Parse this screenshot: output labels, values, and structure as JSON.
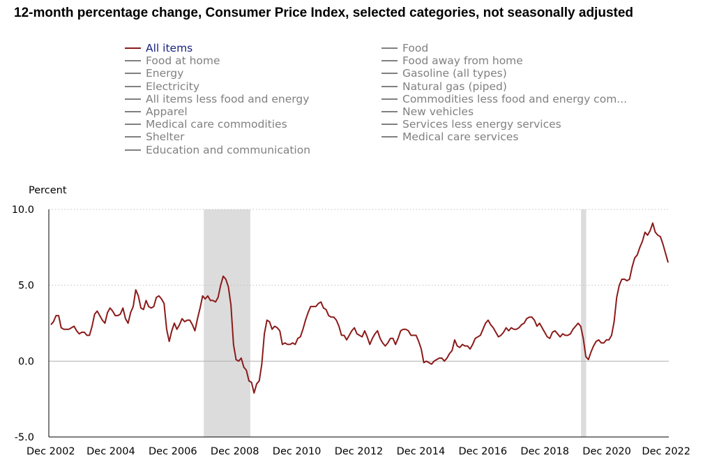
{
  "chart_data": {
    "type": "line",
    "title": "12-month percentage change, Consumer Price Index, selected categories, not seasonally adjusted",
    "ylabel": "Percent",
    "ylim": [
      -5.0,
      10.0
    ],
    "y_ticks": [
      "10.0",
      "5.0",
      "0.0",
      "-5.0"
    ],
    "x_ticks": [
      "Dec 2002",
      "Dec 2004",
      "Dec 2006",
      "Dec 2008",
      "Dec 2010",
      "Dec 2012",
      "Dec 2014",
      "Dec 2016",
      "Dec 2018",
      "Dec 2020",
      "Dec 2022"
    ],
    "x_start": "Dec 2002",
    "x_end": "Dec 2022",
    "grid": "horizontal-dotted",
    "recessions": [
      {
        "start": "Dec 2007",
        "end": "Jun 2009"
      },
      {
        "start": "Feb 2020",
        "end": "Apr 2020"
      }
    ],
    "colors": {
      "active_series": "#8b1a1a",
      "inactive_series": "#808080",
      "active_label": "#1a237e",
      "recession": "#dcdcdc"
    },
    "legend": {
      "left": [
        {
          "label": "All items",
          "active": true
        },
        {
          "label": "Food at home",
          "active": false
        },
        {
          "label": "Energy",
          "active": false
        },
        {
          "label": "Electricity",
          "active": false
        },
        {
          "label": "All items less food and energy",
          "active": false
        },
        {
          "label": "Apparel",
          "active": false
        },
        {
          "label": "Medical care commodities",
          "active": false
        },
        {
          "label": "Shelter",
          "active": false
        },
        {
          "label": "Education and communication",
          "active": false
        }
      ],
      "right": [
        {
          "label": "Food",
          "active": false
        },
        {
          "label": "Food away from home",
          "active": false
        },
        {
          "label": "Gasoline (all types)",
          "active": false
        },
        {
          "label": "Natural gas (piped)",
          "active": false
        },
        {
          "label": "Commodities less food and energy com...",
          "active": false
        },
        {
          "label": "New vehicles",
          "active": false
        },
        {
          "label": "Services less energy services",
          "active": false
        },
        {
          "label": "Medical care services",
          "active": false
        }
      ]
    },
    "series": [
      {
        "name": "All items",
        "values": [
          2.4,
          2.6,
          3.0,
          3.0,
          2.2,
          2.1,
          2.1,
          2.1,
          2.2,
          2.3,
          2.0,
          1.8,
          1.9,
          1.9,
          1.7,
          1.7,
          2.3,
          3.1,
          3.3,
          3.0,
          2.7,
          2.5,
          3.2,
          3.5,
          3.3,
          3.0,
          3.0,
          3.1,
          3.5,
          2.8,
          2.5,
          3.2,
          3.6,
          4.7,
          4.3,
          3.5,
          3.4,
          4.0,
          3.6,
          3.5,
          3.6,
          4.2,
          4.3,
          4.1,
          3.8,
          2.1,
          1.3,
          2.0,
          2.5,
          2.1,
          2.4,
          2.8,
          2.6,
          2.7,
          2.7,
          2.4,
          2.0,
          2.8,
          3.5,
          4.3,
          4.1,
          4.3,
          4.0,
          4.0,
          3.9,
          4.2,
          5.0,
          5.6,
          5.4,
          4.9,
          3.7,
          1.1,
          0.1,
          0.0,
          0.2,
          -0.4,
          -0.6,
          -1.3,
          -1.4,
          -2.1,
          -1.5,
          -1.3,
          -0.2,
          1.8,
          2.7,
          2.6,
          2.1,
          2.3,
          2.2,
          2.0,
          1.1,
          1.2,
          1.1,
          1.1,
          1.2,
          1.1,
          1.5,
          1.6,
          2.1,
          2.7,
          3.2,
          3.6,
          3.6,
          3.6,
          3.8,
          3.9,
          3.5,
          3.4,
          3.0,
          2.9,
          2.9,
          2.7,
          2.3,
          1.7,
          1.7,
          1.4,
          1.7,
          2.0,
          2.2,
          1.8,
          1.7,
          1.6,
          2.0,
          1.6,
          1.1,
          1.5,
          1.8,
          2.0,
          1.5,
          1.2,
          1.0,
          1.2,
          1.5,
          1.5,
          1.1,
          1.5,
          2.0,
          2.1,
          2.1,
          2.0,
          1.7,
          1.7,
          1.7,
          1.3,
          0.8,
          -0.1,
          0.0,
          -0.1,
          -0.2,
          0.0,
          0.1,
          0.2,
          0.2,
          0.0,
          0.2,
          0.5,
          0.7,
          1.4,
          1.0,
          0.9,
          1.1,
          1.0,
          1.0,
          0.8,
          1.1,
          1.5,
          1.6,
          1.7,
          2.1,
          2.5,
          2.7,
          2.4,
          2.2,
          1.9,
          1.6,
          1.7,
          1.9,
          2.2,
          2.0,
          2.2,
          2.1,
          2.1,
          2.2,
          2.4,
          2.5,
          2.8,
          2.9,
          2.9,
          2.7,
          2.3,
          2.5,
          2.2,
          1.9,
          1.6,
          1.5,
          1.9,
          2.0,
          1.8,
          1.6,
          1.8,
          1.7,
          1.7,
          1.8,
          2.1,
          2.3,
          2.5,
          2.3,
          1.5,
          0.3,
          0.1,
          0.6,
          1.0,
          1.3,
          1.4,
          1.2,
          1.2,
          1.4,
          1.4,
          1.7,
          2.6,
          4.2,
          5.0,
          5.4,
          5.4,
          5.3,
          5.4,
          6.2,
          6.8,
          7.0,
          7.5,
          7.9,
          8.5,
          8.3,
          8.6,
          9.1,
          8.5,
          8.3,
          8.2,
          7.7,
          7.1,
          6.5
        ]
      }
    ]
  }
}
